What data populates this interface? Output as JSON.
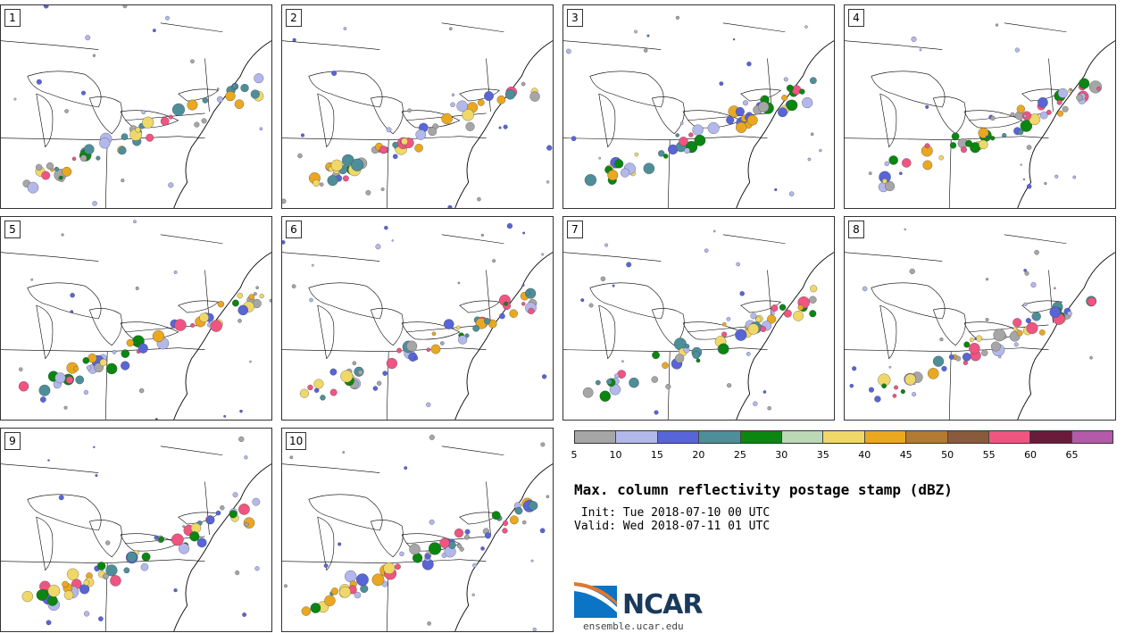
{
  "panels": [
    {
      "label": "1"
    },
    {
      "label": "2"
    },
    {
      "label": "3"
    },
    {
      "label": "4"
    },
    {
      "label": "5"
    },
    {
      "label": "6"
    },
    {
      "label": "7"
    },
    {
      "label": "8"
    },
    {
      "label": "9"
    },
    {
      "label": "10"
    }
  ],
  "colorbar": {
    "colors": [
      "#a6a6a6",
      "#b3b8ea",
      "#5865d6",
      "#4e8e98",
      "#0b8610",
      "#bcd8b6",
      "#f0d868",
      "#e9a820",
      "#b27a32",
      "#8a5a3c",
      "#ef5580",
      "#6a1a3a",
      "#b35aa9"
    ],
    "tick_labels": [
      "5",
      "10",
      "15",
      "20",
      "25",
      "30",
      "35",
      "40",
      "45",
      "50",
      "55",
      "60",
      "65"
    ]
  },
  "title": "Max. column reflectivity postage stamp (dBZ)",
  "init_line": " Init: Tue 2018-07-10 00 UTC",
  "valid_line": "Valid: Wed 2018-07-11 01 UTC",
  "logo_text": "NCAR",
  "website": "ensemble.ucar.edu"
}
